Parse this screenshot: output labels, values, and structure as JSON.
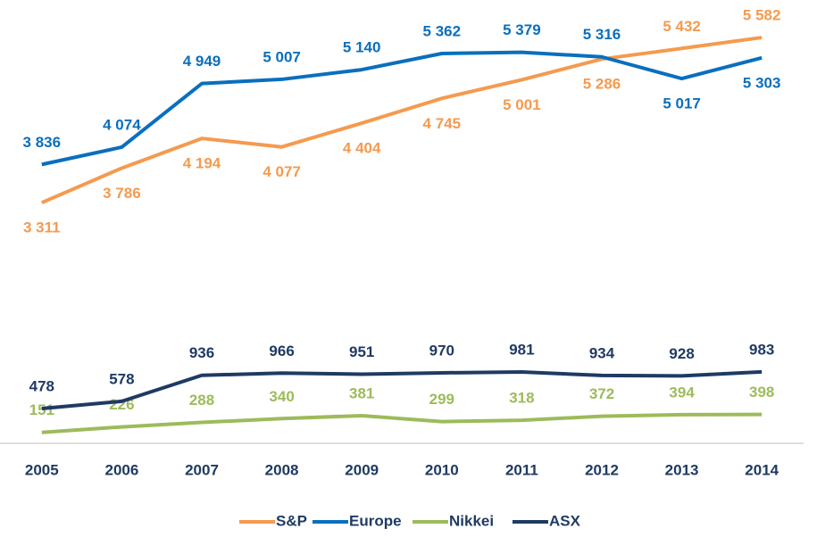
{
  "chart_data": {
    "type": "line",
    "categories": [
      "2005",
      "2006",
      "2007",
      "2008",
      "2009",
      "2010",
      "2011",
      "2012",
      "2013",
      "2014"
    ],
    "ylim": [
      0,
      6000
    ],
    "legend": "bottom",
    "series": [
      {
        "name": "S&P",
        "color": "#f59a4e",
        "values": [
          3311,
          3786,
          4194,
          4077,
          4404,
          4745,
          5001,
          5286,
          5432,
          5582
        ],
        "value_labels": [
          "3 311",
          "3 786",
          "4 194",
          "4 077",
          "4 404",
          "4 745",
          "5 001",
          "5 286",
          "5 432",
          "5 582"
        ]
      },
      {
        "name": "Europe",
        "color": "#0a6fbd",
        "values": [
          3836,
          4074,
          4949,
          5007,
          5140,
          5362,
          5379,
          5316,
          5017,
          5303
        ],
        "value_labels": [
          "3 836",
          "4 074",
          "4 949",
          "5 007",
          "5 140",
          "5 362",
          "5 379",
          "5 316",
          "5 017",
          "5 303"
        ]
      },
      {
        "name": "Nikkei",
        "color": "#9dbb5a",
        "values": [
          151,
          226,
          288,
          340,
          381,
          299,
          318,
          372,
          394,
          398
        ]
      },
      {
        "name": "ASX",
        "color": "#1f3a63",
        "values": [
          478,
          578,
          936,
          966,
          951,
          970,
          981,
          934,
          928,
          983
        ]
      }
    ]
  }
}
